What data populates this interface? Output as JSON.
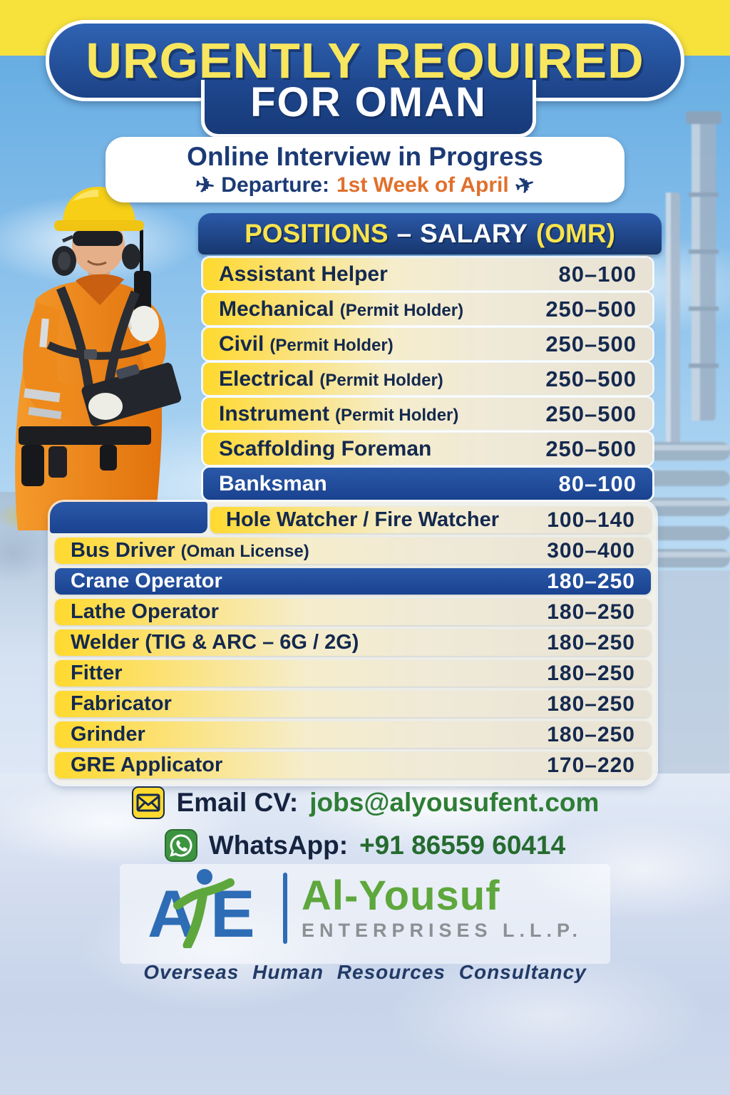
{
  "header": {
    "title_line1": "URGENTLY REQUIRED",
    "title_line2": "FOR OMAN",
    "interview_note": "Online Interview in Progress",
    "departure_label": "Departure:",
    "departure_value": "1st Week of April",
    "plane_icon": "✈"
  },
  "table": {
    "header": {
      "positions": "POSITIONS",
      "separator": "–",
      "salary": "SALARY",
      "currency": "(OMR)"
    },
    "rows": [
      {
        "position": "Assistant Helper",
        "note": "",
        "salary": "80–100",
        "highlight": false,
        "section": "top",
        "indent": false
      },
      {
        "position": "Mechanical",
        "note": "(Permit Holder)",
        "salary": "250–500",
        "highlight": false,
        "section": "top",
        "indent": false
      },
      {
        "position": "Civil",
        "note": "(Permit Holder)",
        "salary": "250–500",
        "highlight": false,
        "section": "top",
        "indent": false
      },
      {
        "position": "Electrical",
        "note": "(Permit Holder)",
        "salary": "250–500",
        "highlight": false,
        "section": "top",
        "indent": false
      },
      {
        "position": "Instrument",
        "note": "(Permit Holder)",
        "salary": "250–500",
        "highlight": false,
        "section": "top",
        "indent": false
      },
      {
        "position": "Scaffolding Foreman",
        "note": "",
        "salary": "250–500",
        "highlight": false,
        "section": "top",
        "indent": false
      },
      {
        "position": "Banksman",
        "note": "",
        "salary": "80–100",
        "highlight": true,
        "section": "top",
        "indent": false
      },
      {
        "position": "Hole Watcher / Fire Watcher",
        "note": "",
        "salary": "100–140",
        "highlight": false,
        "section": "panel",
        "indent": true
      },
      {
        "position": "Bus Driver",
        "note": "(Oman License)",
        "salary": "300–400",
        "highlight": false,
        "section": "panel",
        "indent": false
      },
      {
        "position": "Crane Operator",
        "note": "",
        "salary": "180–250",
        "highlight": true,
        "section": "panel",
        "indent": false
      },
      {
        "position": "Lathe Operator",
        "note": "",
        "salary": "180–250",
        "highlight": false,
        "section": "panel",
        "indent": false
      },
      {
        "position": "Welder (TIG & ARC – 6G / 2G)",
        "note": "",
        "salary": "180–250",
        "highlight": false,
        "section": "panel",
        "indent": false
      },
      {
        "position": "Fitter",
        "note": "",
        "salary": "180–250",
        "highlight": false,
        "section": "panel",
        "indent": false
      },
      {
        "position": "Fabricator",
        "note": "",
        "salary": "180–250",
        "highlight": false,
        "section": "panel",
        "indent": false
      },
      {
        "position": "Grinder",
        "note": "",
        "salary": "180–250",
        "highlight": false,
        "section": "panel",
        "indent": false
      },
      {
        "position": "GRE Applicator",
        "note": "",
        "salary": "170–220",
        "highlight": false,
        "section": "panel",
        "indent": false
      }
    ]
  },
  "contact": {
    "email_label": "Email CV:",
    "email_value": "jobs@alyousufent.com",
    "whatsapp_label": "WhatsApp:",
    "whatsapp_value": "+91 86559 60414"
  },
  "logo": {
    "monogram_a": "A",
    "monogram_e": "E",
    "name": "Al-Yousuf",
    "subtitle": "ENTERPRISES L.L.P.",
    "tagline": "Overseas  Human  Resources  Consultancy"
  },
  "colors": {
    "accent_yellow": "#FFD92E",
    "top_band_yellow": "#F7E23B",
    "banner_blue": "#1C4286",
    "row_blue": "#1A4390",
    "navy_text": "#14294E",
    "orange": "#E0702C",
    "email_green": "#2E7D35",
    "whatsapp_green": "#3D9440",
    "logo_green": "#5EA73C",
    "logo_blue": "#2E6CB5",
    "logo_gray": "#8C9094"
  }
}
